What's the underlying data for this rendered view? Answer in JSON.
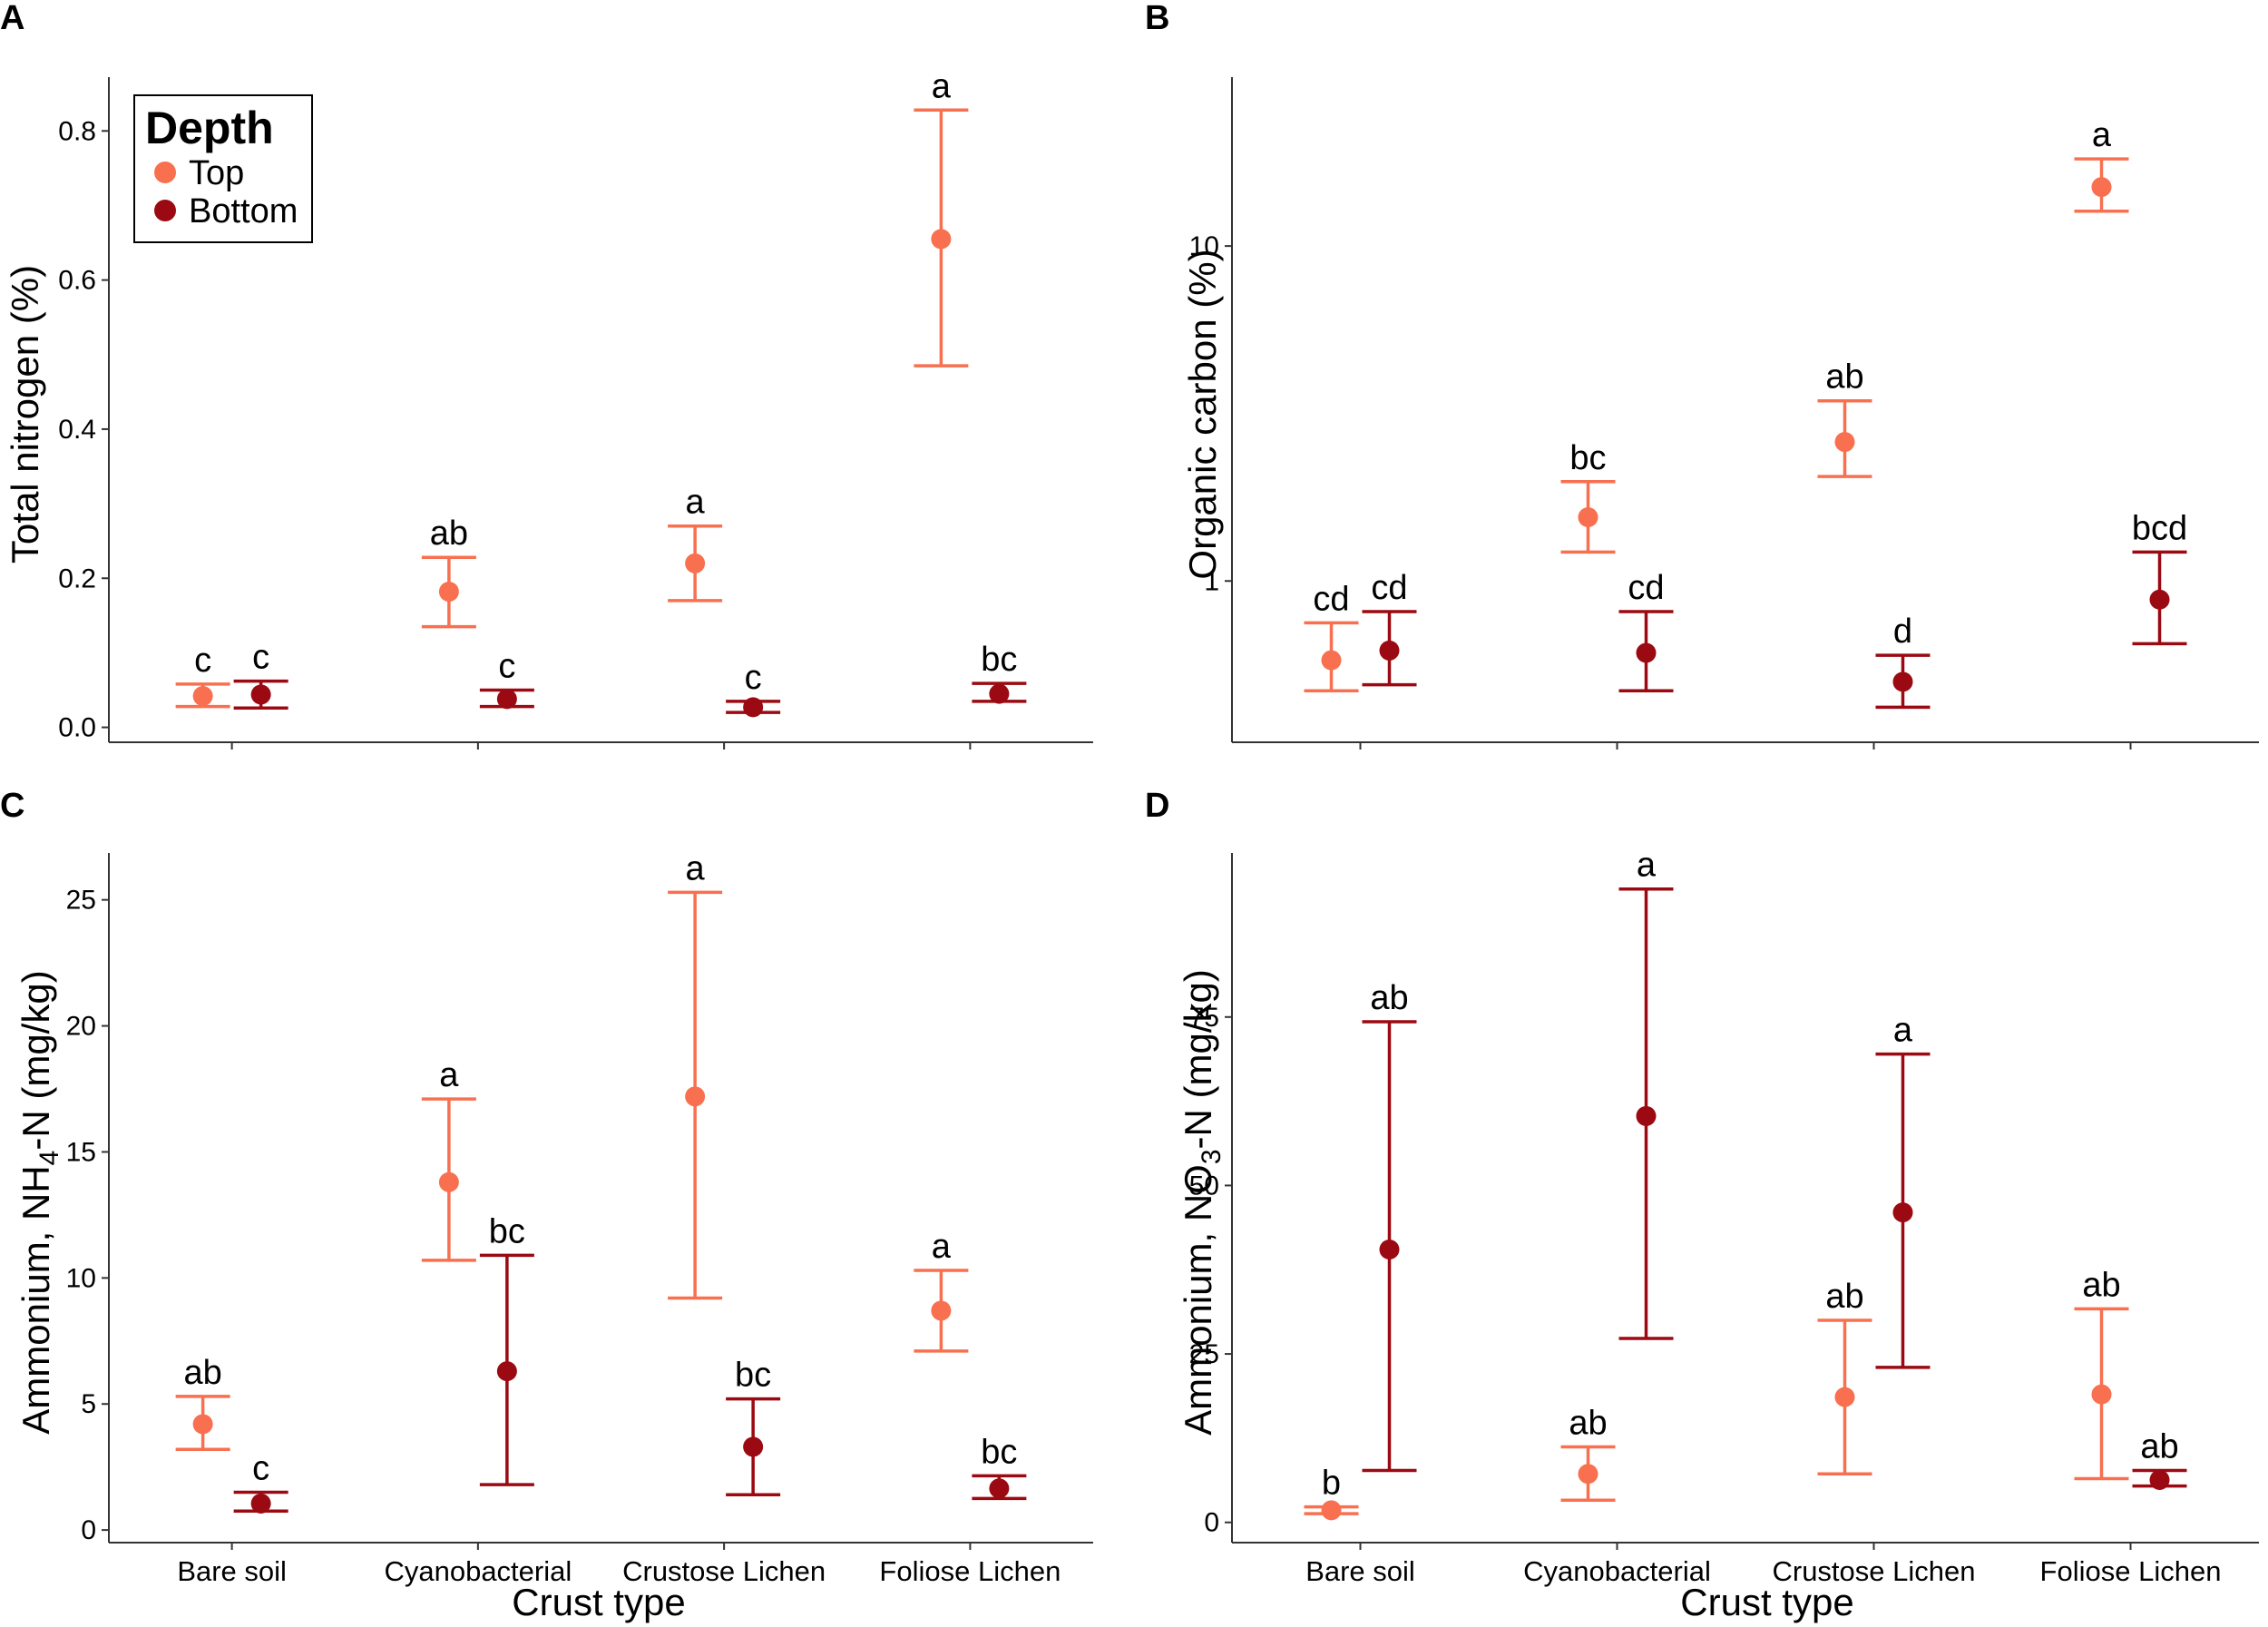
{
  "colors": {
    "top": "#F8704F",
    "bottom": "#9B0A12",
    "axis": "#333333"
  },
  "legend": {
    "title": "Depth",
    "items": [
      "Top",
      "Bottom"
    ]
  },
  "shared_x": {
    "label": "Crust type",
    "categories": [
      "Bare soil",
      "Cyanobacterial",
      "Crustose Lichen",
      "Foliose Lichen"
    ]
  },
  "chart_data": [
    {
      "panel": "A",
      "type": "scatter",
      "subtype": "point-with-errorbars",
      "ylabel": "Total nitrogen (%)",
      "yscale": "linear",
      "ylim": [
        -0.02,
        0.86
      ],
      "yticks": [
        0.0,
        0.2,
        0.4,
        0.6,
        0.8
      ],
      "ytick_labels": [
        "0.0",
        "0.2",
        "0.4",
        "0.6",
        "0.8"
      ],
      "show_x_labels": false,
      "series": [
        {
          "name": "Top",
          "mean": [
            0.042,
            0.182,
            0.22,
            0.655
          ],
          "lower": [
            0.028,
            0.135,
            0.17,
            0.485
          ],
          "upper": [
            0.058,
            0.228,
            0.27,
            0.828
          ],
          "letters": [
            "c",
            "ab",
            "a",
            "a"
          ]
        },
        {
          "name": "Bottom",
          "mean": [
            0.044,
            0.038,
            0.027,
            0.045
          ],
          "lower": [
            0.026,
            0.028,
            0.02,
            0.035
          ],
          "upper": [
            0.062,
            0.05,
            0.035,
            0.059
          ],
          "letters": [
            "c",
            "c",
            "c",
            "bc"
          ]
        }
      ]
    },
    {
      "panel": "B",
      "type": "scatter",
      "subtype": "point-with-errorbars",
      "ylabel": "Organic carbon (%)",
      "yscale": "log10",
      "ylim": [
        0.33,
        30
      ],
      "yticks": [
        1,
        10
      ],
      "ytick_labels": [
        "1",
        "10"
      ],
      "show_x_labels": false,
      "series": [
        {
          "name": "Top",
          "mean": [
            0.58,
            1.55,
            2.6,
            15.0
          ],
          "lower": [
            0.47,
            1.22,
            2.05,
            12.7
          ],
          "upper": [
            0.75,
            1.98,
            3.45,
            18.2
          ],
          "letters": [
            "cd",
            "bc",
            "ab",
            "a"
          ]
        },
        {
          "name": "Bottom",
          "mean": [
            0.62,
            0.61,
            0.5,
            0.88
          ],
          "lower": [
            0.49,
            0.47,
            0.42,
            0.65
          ],
          "upper": [
            0.81,
            0.81,
            0.6,
            1.22
          ],
          "letters": [
            "cd",
            "cd",
            "d",
            "bcd"
          ]
        }
      ]
    },
    {
      "panel": "C",
      "type": "scatter",
      "subtype": "point-with-errorbars",
      "ylabel_parts": [
        "Ammonium, NH",
        "4",
        "-N (mg/kg)"
      ],
      "yscale": "linear",
      "ylim": [
        -0.5,
        26.5
      ],
      "yticks": [
        0,
        5,
        10,
        15,
        20,
        25
      ],
      "ytick_labels": [
        "0",
        "5",
        "10",
        "15",
        "20",
        "25"
      ],
      "show_x_labels": true,
      "series": [
        {
          "name": "Top",
          "mean": [
            4.2,
            13.8,
            17.2,
            8.7
          ],
          "lower": [
            3.2,
            10.7,
            9.2,
            7.1
          ],
          "upper": [
            5.3,
            17.1,
            25.3,
            10.3
          ],
          "letters": [
            "ab",
            "a",
            "a",
            "a"
          ]
        },
        {
          "name": "Bottom",
          "mean": [
            1.05,
            6.3,
            3.3,
            1.65
          ],
          "lower": [
            0.75,
            1.8,
            1.4,
            1.25
          ],
          "upper": [
            1.5,
            10.9,
            5.2,
            2.15
          ],
          "letters": [
            "c",
            "bc",
            "bc",
            "bc"
          ]
        }
      ]
    },
    {
      "panel": "D",
      "type": "scatter",
      "subtype": "point-with-errorbars",
      "ylabel_parts": [
        "Ammonium, NO",
        "3",
        "-N (mg/kg)"
      ],
      "yscale": "linear",
      "ylim": [
        -3,
        98
      ],
      "yticks": [
        0,
        25,
        50,
        75
      ],
      "ytick_labels": [
        "0",
        "25",
        "50",
        "75"
      ],
      "show_x_labels": true,
      "series": [
        {
          "name": "Top",
          "mean": [
            1.8,
            7.2,
            18.6,
            19.0
          ],
          "lower": [
            1.3,
            3.3,
            7.2,
            6.5
          ],
          "upper": [
            2.3,
            11.2,
            30.0,
            31.7
          ],
          "letters": [
            "b",
            "ab",
            "ab",
            "ab"
          ]
        },
        {
          "name": "Bottom",
          "mean": [
            40.5,
            60.3,
            46.0,
            6.3
          ],
          "lower": [
            7.7,
            27.3,
            23.0,
            5.4
          ],
          "upper": [
            74.3,
            94.0,
            69.5,
            7.7
          ],
          "letters": [
            "ab",
            "a",
            "a",
            "ab"
          ]
        }
      ]
    }
  ]
}
